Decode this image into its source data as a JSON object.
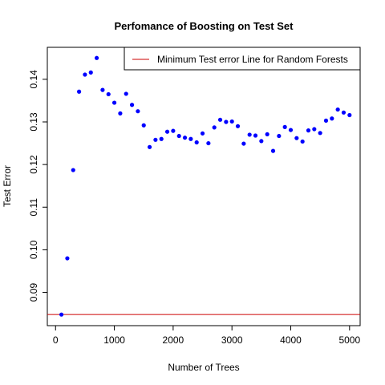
{
  "chart_data": {
    "type": "scatter",
    "title": "Perfomance of Boosting on Test Set",
    "xlabel": "Number of Trees",
    "ylabel": "Test Error",
    "xlim": [
      -140,
      5180
    ],
    "ylim": [
      0.0822,
      0.1475
    ],
    "xticks": [
      0,
      1000,
      2000,
      3000,
      4000,
      5000
    ],
    "yticks": [
      0.09,
      0.1,
      0.11,
      0.12,
      0.13,
      0.14
    ],
    "ytick_labels": [
      "0.09",
      "0.10",
      "0.11",
      "0.12",
      "0.13",
      "0.14"
    ],
    "grid": false,
    "point_color": "#0000ff",
    "reference_line": {
      "name": "Minimum Test error Line for Random Forests",
      "y": 0.0848,
      "color": "#cc0000"
    },
    "legend": {
      "position": "top-right",
      "entries": [
        "Minimum Test error Line for Random Forests"
      ]
    },
    "series": [
      {
        "x": [
          100,
          200,
          300,
          400,
          500,
          600,
          700,
          800,
          900,
          1000,
          1100,
          1200,
          1300,
          1400,
          1500,
          1600,
          1700,
          1800,
          1900,
          2000,
          2100,
          2200,
          2300,
          2400,
          2500,
          2600,
          2700,
          2800,
          2900,
          3000,
          3100,
          3200,
          3300,
          3400,
          3500,
          3600,
          3700,
          3800,
          3900,
          4000,
          4100,
          4200,
          4300,
          4400,
          4500,
          4600,
          4700,
          4800,
          4900,
          5000
        ],
        "y": [
          0.0848,
          0.098,
          0.1187,
          0.1371,
          0.1411,
          0.1416,
          0.145,
          0.1375,
          0.1365,
          0.1345,
          0.132,
          0.1366,
          0.134,
          0.1325,
          0.1292,
          0.1241,
          0.1258,
          0.126,
          0.1277,
          0.1279,
          0.1267,
          0.1263,
          0.126,
          0.1252,
          0.1273,
          0.125,
          0.1287,
          0.1305,
          0.13,
          0.1301,
          0.129,
          0.1249,
          0.127,
          0.1268,
          0.1255,
          0.1271,
          0.1232,
          0.1267,
          0.1288,
          0.1281,
          0.1262,
          0.1254,
          0.128,
          0.1283,
          0.1274,
          0.1303,
          0.1308,
          0.1329,
          0.1322,
          0.1316
        ]
      }
    ]
  }
}
